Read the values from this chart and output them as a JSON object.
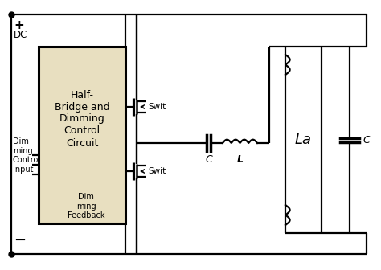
{
  "bg_color": "#ffffff",
  "box_fill": "#e8dfc0",
  "box_text": "Half-\nBridge and\nDimming\nControl\nCircuit",
  "label_C1": "C",
  "label_L": "L",
  "label_La": "La",
  "label_C2": "C",
  "label_swit1": "Swit",
  "label_swit2": "Swit",
  "label_dimfb": "Dim\nming\nFeedback",
  "lw": 1.6,
  "lw_thick": 2.2
}
